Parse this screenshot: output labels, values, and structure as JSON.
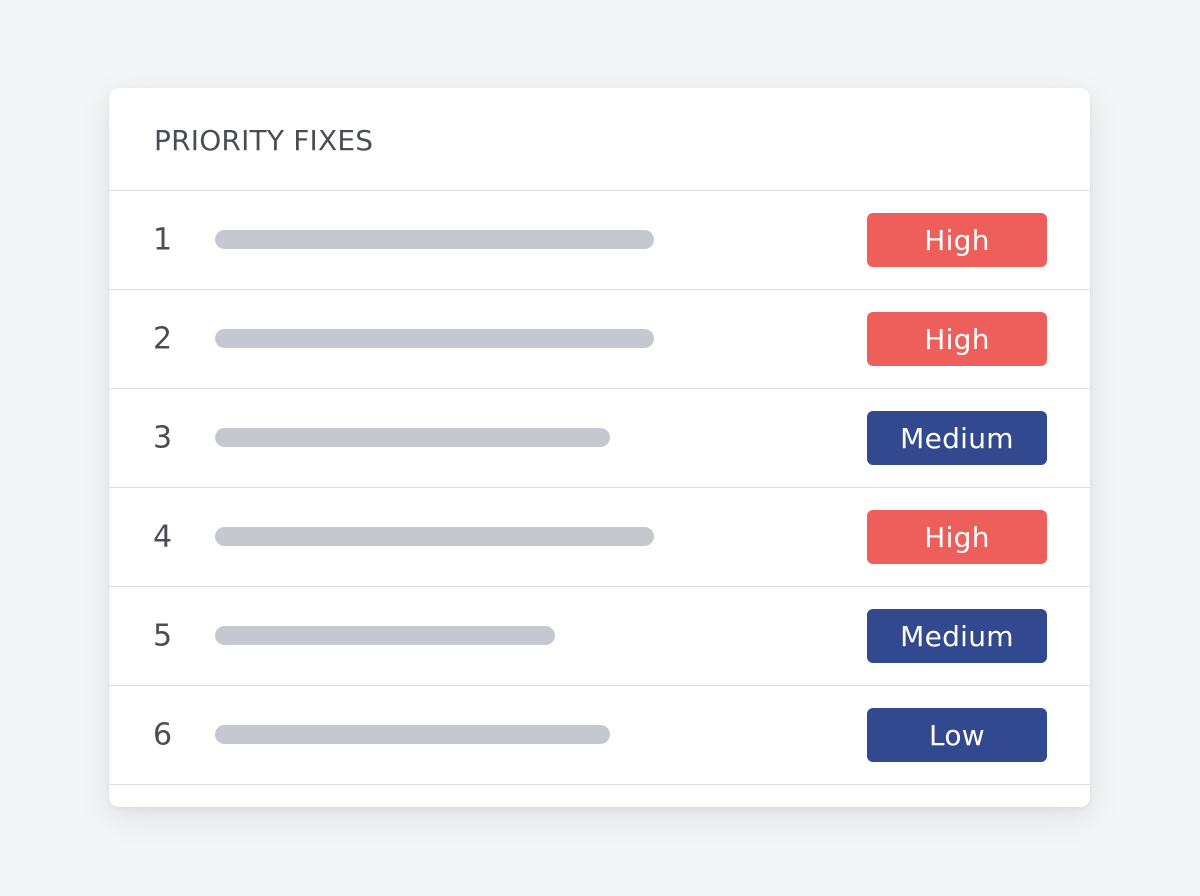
{
  "panel": {
    "title": "PRIORITY FIXES"
  },
  "colors": {
    "high": "#ee5e5a",
    "medium": "#33498f",
    "low": "#33498f",
    "placeholder": "#c5c8cf"
  },
  "rows": [
    {
      "number": "1",
      "priority": "High",
      "level": "high"
    },
    {
      "number": "2",
      "priority": "High",
      "level": "high"
    },
    {
      "number": "3",
      "priority": "Medium",
      "level": "medium"
    },
    {
      "number": "4",
      "priority": "High",
      "level": "high"
    },
    {
      "number": "5",
      "priority": "Medium",
      "level": "medium"
    },
    {
      "number": "6",
      "priority": "Low",
      "level": "low"
    }
  ]
}
